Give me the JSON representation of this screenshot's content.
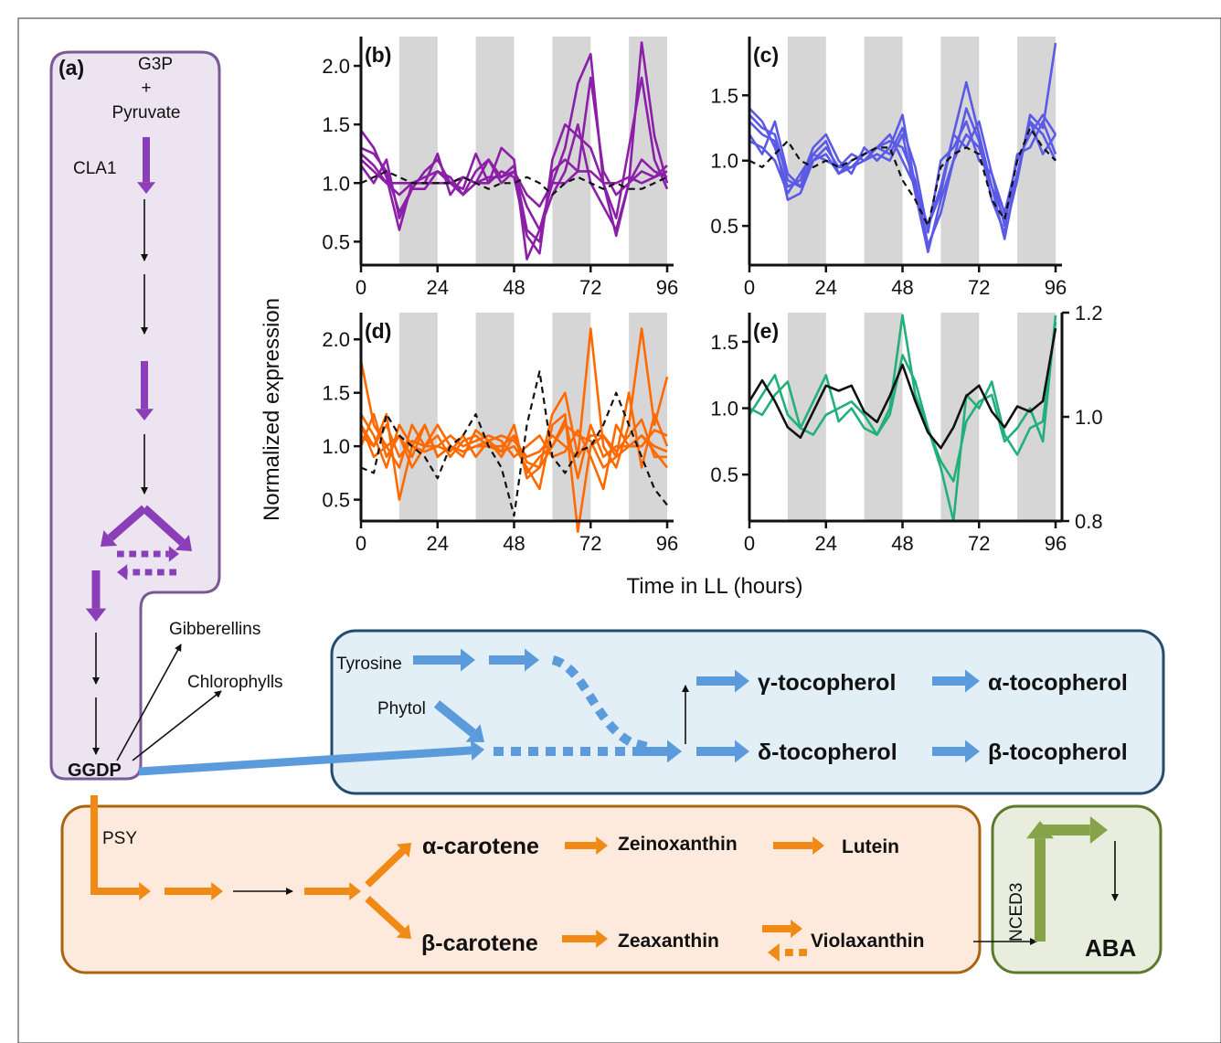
{
  "colors": {
    "purple": "#8a3fb8",
    "blue": "#5b9bdc",
    "orange": "#f08a14",
    "green": "#86a34a",
    "purple_box_fill": "#ece4f0",
    "purple_box_stroke": "#7a5a96",
    "blue_box_fill": "#e2eff6",
    "blue_box_stroke": "#244c6e",
    "orange_box_fill": "#fdeadd",
    "orange_box_stroke": "#a8640e",
    "green_box_fill": "#e9eddd",
    "green_box_stroke": "#5d7a2c",
    "series_b": "#8b1fa8",
    "series_c": "#5a5ae6",
    "series_d": "#ff6a00",
    "series_e": "#22b07a",
    "shade": "#d6d6d6"
  },
  "pathway": {
    "panel_label": "(a)",
    "start_line1": "G3P",
    "start_line2": "+",
    "start_line3": "Pyruvate",
    "cla1": "CLA1",
    "gibberellins": "Gibberellins",
    "chlorophylls": "Chlorophylls",
    "ggdp": "GGDP",
    "psy": "PSY",
    "tyrosine": "Tyrosine",
    "phytol": "Phytol",
    "gamma_toco": "γ-tocopherol",
    "alpha_toco": "α-tocopherol",
    "delta_toco": "δ-tocopherol",
    "beta_toco": "β-tocopherol",
    "alpha_carotene": "α-carotene",
    "beta_carotene": "β-carotene",
    "zeinoxanthin": "Zeinoxanthin",
    "lutein": "Lutein",
    "zeaxanthin": "Zeaxanthin",
    "violaxanthin": "Violaxanthin",
    "nced3": "NCED3",
    "aba": "ABA"
  },
  "axes": {
    "ylabel": "Normalized expression",
    "xlabel": "Time in LL (hours)"
  },
  "chart_data": [
    {
      "type": "line",
      "panel": "(b)",
      "x": [
        0,
        4,
        8,
        12,
        16,
        20,
        24,
        28,
        32,
        36,
        40,
        44,
        48,
        52,
        56,
        60,
        64,
        68,
        72,
        76,
        80,
        84,
        88,
        92,
        96
      ],
      "xticks": [
        0,
        24,
        48,
        72,
        96
      ],
      "yticks": [
        0.5,
        1.0,
        1.5,
        2.0
      ],
      "ylim": [
        0.3,
        2.25
      ],
      "xlim": [
        0,
        98
      ],
      "dark_intervals": [
        [
          12,
          24
        ],
        [
          36,
          48
        ],
        [
          60,
          72
        ],
        [
          84,
          96
        ]
      ],
      "series": [
        {
          "style": "solid",
          "values": [
            1.45,
            1.3,
            1.05,
            0.6,
            1.0,
            1.0,
            1.25,
            0.9,
            1.05,
            1.0,
            1.0,
            1.3,
            1.2,
            0.35,
            0.6,
            1.0,
            1.3,
            1.85,
            2.1,
            1.0,
            0.55,
            1.0,
            2.2,
            1.4,
            1.0
          ]
        },
        {
          "style": "solid",
          "values": [
            1.3,
            1.25,
            1.1,
            0.75,
            0.95,
            1.1,
            1.2,
            1.0,
            0.95,
            1.25,
            1.0,
            1.1,
            1.05,
            0.55,
            0.4,
            1.2,
            1.5,
            1.4,
            1.3,
            1.0,
            0.7,
            1.3,
            1.9,
            1.2,
            0.95
          ]
        },
        {
          "style": "solid",
          "values": [
            1.2,
            1.1,
            1.0,
            0.9,
            1.0,
            1.05,
            1.1,
            1.0,
            0.9,
            1.1,
            1.2,
            1.0,
            1.1,
            0.9,
            0.8,
            1.0,
            1.0,
            1.1,
            1.1,
            1.0,
            1.0,
            1.05,
            1.0,
            1.05,
            1.1
          ]
        },
        {
          "style": "solid",
          "values": [
            1.25,
            1.15,
            1.0,
            1.0,
            1.0,
            1.0,
            1.0,
            1.0,
            1.05,
            1.0,
            1.05,
            1.05,
            1.1,
            0.8,
            0.6,
            0.9,
            1.1,
            1.5,
            1.0,
            0.8,
            0.6,
            1.0,
            1.1,
            1.05,
            1.15
          ]
        },
        {
          "style": "solid",
          "values": [
            1.15,
            1.0,
            1.2,
            0.7,
            0.95,
            0.95,
            1.1,
            1.05,
            0.9,
            1.0,
            1.2,
            1.05,
            1.15,
            0.6,
            0.5,
            1.1,
            1.2,
            1.1,
            1.9,
            1.1,
            0.9,
            1.0,
            1.2,
            1.1,
            1.05
          ]
        },
        {
          "style": "dashed",
          "values": [
            1.0,
            1.05,
            1.1,
            1.05,
            1.0,
            1.0,
            1.0,
            1.0,
            1.05,
            1.0,
            0.95,
            1.0,
            1.0,
            1.05,
            1.0,
            0.9,
            1.0,
            1.05,
            1.0,
            0.95,
            1.0,
            0.95,
            0.95,
            1.0,
            1.05
          ]
        }
      ]
    },
    {
      "type": "line",
      "panel": "(c)",
      "x": [
        0,
        4,
        8,
        12,
        16,
        20,
        24,
        28,
        32,
        36,
        40,
        44,
        48,
        52,
        56,
        60,
        64,
        68,
        72,
        76,
        80,
        84,
        88,
        92,
        96
      ],
      "xticks": [
        0,
        24,
        48,
        72,
        96
      ],
      "yticks": [
        0.5,
        1.0,
        1.5
      ],
      "ylim": [
        0.2,
        1.95
      ],
      "xlim": [
        0,
        98
      ],
      "dark_intervals": [
        [
          12,
          24
        ],
        [
          36,
          48
        ],
        [
          60,
          72
        ],
        [
          84,
          96
        ]
      ],
      "series": [
        {
          "style": "solid",
          "values": [
            1.4,
            1.3,
            1.1,
            0.8,
            0.85,
            1.1,
            1.2,
            1.0,
            0.9,
            1.1,
            1.0,
            1.1,
            1.35,
            0.8,
            0.5,
            0.8,
            1.2,
            1.6,
            1.2,
            0.8,
            0.55,
            0.9,
            1.3,
            1.2,
            1.0
          ]
        },
        {
          "style": "solid",
          "values": [
            1.3,
            1.2,
            1.15,
            0.7,
            0.75,
            1.0,
            1.1,
            0.95,
            0.95,
            1.0,
            1.05,
            1.0,
            1.2,
            0.75,
            0.3,
            0.7,
            1.0,
            1.2,
            1.1,
            0.8,
            0.4,
            0.9,
            1.3,
            1.05,
            1.2
          ]
        },
        {
          "style": "solid",
          "values": [
            1.2,
            1.05,
            1.3,
            0.9,
            0.8,
            1.05,
            1.15,
            0.9,
            1.0,
            1.05,
            1.1,
            1.05,
            1.25,
            0.95,
            0.45,
            1.0,
            1.1,
            1.3,
            1.0,
            0.9,
            0.6,
            1.0,
            1.2,
            1.35,
            1.2
          ]
        },
        {
          "style": "solid",
          "values": [
            1.15,
            1.1,
            1.0,
            0.75,
            0.9,
            1.05,
            1.0,
            0.95,
            1.05,
            1.0,
            1.1,
            1.15,
            1.1,
            0.85,
            0.35,
            0.6,
            1.0,
            1.4,
            1.15,
            0.7,
            0.45,
            0.85,
            1.35,
            1.25,
            1.9
          ]
        },
        {
          "style": "solid",
          "values": [
            1.35,
            1.25,
            1.2,
            0.85,
            0.8,
            1.0,
            1.05,
            0.9,
            0.95,
            1.05,
            1.1,
            1.2,
            1.0,
            0.8,
            0.5,
            0.75,
            1.2,
            1.1,
            1.3,
            0.9,
            0.5,
            1.05,
            1.1,
            1.3,
            1.05
          ]
        },
        {
          "style": "dashed",
          "values": [
            1.0,
            0.95,
            1.05,
            1.15,
            1.0,
            0.95,
            1.0,
            0.95,
            1.0,
            1.05,
            1.1,
            1.1,
            0.85,
            0.7,
            0.5,
            0.95,
            1.05,
            1.1,
            1.05,
            0.7,
            0.55,
            1.0,
            1.25,
            1.1,
            1.0
          ]
        }
      ]
    },
    {
      "type": "line",
      "panel": "(d)",
      "x": [
        0,
        4,
        8,
        12,
        16,
        20,
        24,
        28,
        32,
        36,
        40,
        44,
        48,
        52,
        56,
        60,
        64,
        68,
        72,
        76,
        80,
        84,
        88,
        92,
        96
      ],
      "xticks": [
        0,
        24,
        48,
        72,
        96
      ],
      "yticks": [
        0.5,
        1.0,
        1.5,
        2.0
      ],
      "ylim": [
        0.3,
        2.25
      ],
      "xlim": [
        0,
        98
      ],
      "dark_intervals": [
        [
          12,
          24
        ],
        [
          36,
          48
        ],
        [
          60,
          72
        ],
        [
          84,
          96
        ]
      ],
      "series": [
        {
          "style": "solid",
          "values": [
            1.8,
            1.2,
            1.0,
            0.8,
            1.2,
            1.0,
            1.1,
            0.9,
            1.05,
            1.1,
            1.0,
            0.95,
            1.2,
            0.7,
            0.8,
            1.3,
            1.5,
            0.9,
            2.1,
            1.0,
            0.8,
            1.2,
            2.1,
            1.2,
            1.65
          ]
        },
        {
          "style": "solid",
          "values": [
            1.2,
            1.0,
            1.3,
            0.5,
            1.0,
            1.2,
            0.9,
            1.0,
            0.9,
            1.15,
            1.05,
            0.95,
            1.0,
            0.8,
            0.6,
            1.2,
            1.3,
            0.2,
            1.0,
            1.1,
            0.9,
            1.0,
            1.1,
            0.95,
            0.8
          ]
        },
        {
          "style": "solid",
          "values": [
            1.0,
            1.3,
            0.9,
            1.1,
            0.8,
            1.0,
            1.2,
            1.0,
            0.95,
            1.0,
            1.05,
            0.9,
            1.1,
            0.75,
            0.9,
            1.0,
            1.2,
            1.1,
            1.05,
            0.8,
            0.9,
            1.5,
            0.8,
            1.3,
            1.0
          ]
        },
        {
          "style": "solid",
          "values": [
            1.3,
            1.1,
            0.8,
            1.2,
            1.0,
            0.95,
            1.0,
            1.1,
            1.0,
            1.05,
            1.1,
            1.05,
            0.9,
            1.0,
            1.1,
            0.9,
            0.95,
            1.15,
            0.9,
            0.6,
            1.2,
            1.0,
            1.0,
            1.15,
            1.1
          ]
        },
        {
          "style": "solid",
          "values": [
            1.1,
            1.0,
            1.2,
            0.9,
            1.05,
            1.0,
            1.0,
            0.95,
            1.1,
            0.9,
            1.05,
            1.1,
            1.05,
            0.9,
            0.95,
            1.1,
            1.0,
            0.9,
            1.1,
            1.1,
            0.95,
            1.1,
            1.25,
            0.9,
            0.9
          ]
        },
        {
          "style": "solid",
          "values": [
            1.2,
            0.9,
            1.0,
            1.1,
            0.9,
            1.2,
            0.9,
            1.0,
            0.95,
            1.0,
            1.0,
            1.0,
            1.1,
            0.85,
            0.8,
            1.0,
            1.25,
            0.7,
            1.2,
            0.9,
            1.0,
            1.0,
            1.1,
            1.0,
            0.95
          ]
        },
        {
          "style": "dashed",
          "values": [
            0.8,
            0.75,
            1.3,
            1.1,
            1.0,
            0.9,
            0.7,
            1.0,
            1.1,
            1.3,
            1.0,
            0.8,
            0.35,
            1.2,
            1.7,
            0.9,
            0.75,
            0.95,
            1.0,
            1.2,
            1.5,
            1.2,
            0.9,
            0.6,
            0.45
          ]
        }
      ]
    },
    {
      "type": "line",
      "panel": "(e)",
      "x": [
        0,
        4,
        8,
        12,
        16,
        20,
        24,
        28,
        32,
        36,
        40,
        44,
        48,
        52,
        56,
        60,
        64,
        68,
        72,
        76,
        80,
        84,
        88,
        92,
        96
      ],
      "xticks": [
        0,
        24,
        48,
        72,
        96
      ],
      "yticks": [
        0.5,
        1.0,
        1.5
      ],
      "y2ticks": [
        0.8,
        1.0,
        1.2
      ],
      "ylim": [
        0.15,
        1.72
      ],
      "y2lim": [
        0.8,
        1.2
      ],
      "xlim": [
        0,
        98
      ],
      "dark_intervals": [
        [
          12,
          24
        ],
        [
          36,
          48
        ],
        [
          60,
          72
        ],
        [
          84,
          96
        ]
      ],
      "series": [
        {
          "style": "solid",
          "color_key": "series_e",
          "axis": "left",
          "values": [
            0.95,
            1.1,
            1.25,
            0.95,
            0.85,
            1.05,
            1.25,
            0.9,
            1.0,
            0.85,
            0.8,
            1.0,
            1.7,
            1.1,
            0.85,
            0.55,
            0.15,
            1.1,
            1.0,
            1.2,
            0.8,
            0.65,
            0.85,
            0.9,
            1.65
          ]
        },
        {
          "style": "solid",
          "color_key": "series_e",
          "axis": "left",
          "values": [
            1.0,
            0.95,
            1.1,
            1.2,
            0.85,
            0.8,
            0.95,
            1.0,
            1.05,
            0.95,
            0.8,
            0.95,
            1.4,
            1.2,
            0.85,
            0.6,
            0.45,
            0.9,
            1.05,
            1.1,
            0.75,
            0.85,
            1.0,
            0.75,
            1.7
          ]
        },
        {
          "style": "solid",
          "color_key": "black",
          "axis": "right",
          "values": [
            1.03,
            1.07,
            1.03,
            0.98,
            0.96,
            1.01,
            1.06,
            1.05,
            1.06,
            1.01,
            0.99,
            1.04,
            1.1,
            1.03,
            0.97,
            0.94,
            0.98,
            1.04,
            1.06,
            1.01,
            0.98,
            1.02,
            1.01,
            1.03,
            1.17
          ]
        }
      ]
    }
  ]
}
